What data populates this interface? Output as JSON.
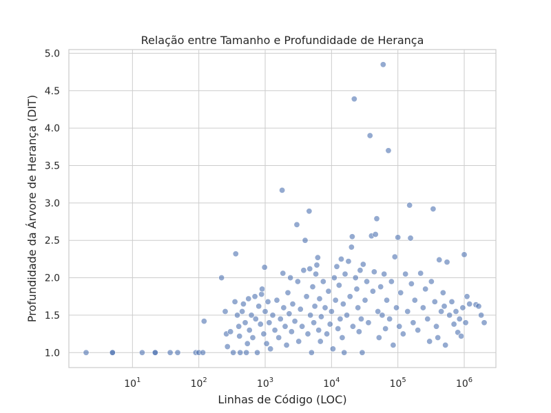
{
  "chart_data": {
    "type": "scatter",
    "title": "Relação entre Tamanho e Profundidade de Herança",
    "xlabel": "Linhas de Código (LOC)",
    "ylabel": "Profundidade da Árvore de Herança (DIT)",
    "x_scale": "log",
    "xlim": [
      1.1,
      3000000
    ],
    "ylim": [
      0.8,
      5.05
    ],
    "x_ticks": [
      10,
      100,
      1000,
      10000,
      100000,
      1000000
    ],
    "x_tick_labels": [
      {
        "base": "10",
        "exp": "1"
      },
      {
        "base": "10",
        "exp": "2"
      },
      {
        "base": "10",
        "exp": "3"
      },
      {
        "base": "10",
        "exp": "4"
      },
      {
        "base": "10",
        "exp": "5"
      },
      {
        "base": "10",
        "exp": "6"
      }
    ],
    "y_ticks": [
      1.0,
      1.5,
      2.0,
      2.5,
      3.0,
      3.5,
      4.0,
      4.5,
      5.0
    ],
    "y_tick_labels": [
      "1.0",
      "1.5",
      "2.0",
      "2.5",
      "3.0",
      "3.5",
      "4.0",
      "4.5",
      "5.0"
    ],
    "grid": true,
    "colors": {
      "point": "#4c72b0",
      "grid": "#cccccc",
      "text": "#262626"
    },
    "points": [
      [
        2,
        1.0
      ],
      [
        5,
        1.0
      ],
      [
        5,
        1.0
      ],
      [
        14,
        1.0
      ],
      [
        22,
        1.0
      ],
      [
        22,
        1.0
      ],
      [
        37,
        1.0
      ],
      [
        48,
        1.0
      ],
      [
        90,
        1.0
      ],
      [
        100,
        1.0
      ],
      [
        115,
        1.0
      ],
      [
        120,
        1.42
      ],
      [
        220,
        2.0
      ],
      [
        250,
        1.55
      ],
      [
        260,
        1.25
      ],
      [
        270,
        1.08
      ],
      [
        300,
        1.28
      ],
      [
        330,
        1.0
      ],
      [
        360,
        2.32
      ],
      [
        350,
        1.68
      ],
      [
        380,
        1.5
      ],
      [
        400,
        1.35
      ],
      [
        410,
        1.22
      ],
      [
        420,
        1.0
      ],
      [
        450,
        1.55
      ],
      [
        470,
        1.65
      ],
      [
        500,
        1.4
      ],
      [
        520,
        1.0
      ],
      [
        540,
        1.12
      ],
      [
        560,
        1.72
      ],
      [
        580,
        1.3
      ],
      [
        620,
        1.5
      ],
      [
        650,
        1.2
      ],
      [
        700,
        1.75
      ],
      [
        720,
        1.45
      ],
      [
        760,
        1.0
      ],
      [
        800,
        1.62
      ],
      [
        850,
        1.38
      ],
      [
        880,
        1.78
      ],
      [
        900,
        1.85
      ],
      [
        950,
        1.25
      ],
      [
        980,
        2.14
      ],
      [
        1000,
        1.55
      ],
      [
        1050,
        1.12
      ],
      [
        1100,
        1.68
      ],
      [
        1150,
        1.4
      ],
      [
        1200,
        1.05
      ],
      [
        1300,
        1.5
      ],
      [
        1400,
        1.3
      ],
      [
        1500,
        1.7
      ],
      [
        1600,
        1.2
      ],
      [
        1700,
        1.45
      ],
      [
        1800,
        3.17
      ],
      [
        1850,
        2.06
      ],
      [
        1900,
        1.6
      ],
      [
        2000,
        1.35
      ],
      [
        2100,
        1.1
      ],
      [
        2200,
        1.8
      ],
      [
        2300,
        1.52
      ],
      [
        2400,
        2.0
      ],
      [
        2500,
        1.28
      ],
      [
        2600,
        1.65
      ],
      [
        2800,
        1.42
      ],
      [
        3000,
        2.71
      ],
      [
        3100,
        1.95
      ],
      [
        3200,
        1.15
      ],
      [
        3400,
        1.58
      ],
      [
        3600,
        1.35
      ],
      [
        3800,
        2.1
      ],
      [
        4000,
        2.5
      ],
      [
        4200,
        1.75
      ],
      [
        4400,
        1.25
      ],
      [
        4600,
        2.89
      ],
      [
        4700,
        2.12
      ],
      [
        4800,
        1.5
      ],
      [
        5000,
        1.0
      ],
      [
        5200,
        1.88
      ],
      [
        5400,
        1.4
      ],
      [
        5600,
        1.62
      ],
      [
        5800,
        2.05
      ],
      [
        6000,
        2.17
      ],
      [
        6200,
        2.27
      ],
      [
        6400,
        1.3
      ],
      [
        6600,
        1.72
      ],
      [
        6800,
        1.15
      ],
      [
        7000,
        1.48
      ],
      [
        7500,
        1.95
      ],
      [
        8000,
        1.6
      ],
      [
        8500,
        1.25
      ],
      [
        9000,
        1.82
      ],
      [
        9500,
        1.38
      ],
      [
        10000,
        1.55
      ],
      [
        10500,
        1.05
      ],
      [
        11000,
        2.0
      ],
      [
        11500,
        1.7
      ],
      [
        12000,
        2.15
      ],
      [
        12500,
        1.32
      ],
      [
        13000,
        1.9
      ],
      [
        13500,
        1.45
      ],
      [
        14000,
        2.25
      ],
      [
        14500,
        1.2
      ],
      [
        15000,
        1.65
      ],
      [
        15500,
        1.0
      ],
      [
        16000,
        2.05
      ],
      [
        17000,
        1.5
      ],
      [
        18000,
        2.22
      ],
      [
        19000,
        1.75
      ],
      [
        20000,
        2.41
      ],
      [
        20500,
        2.55
      ],
      [
        21000,
        1.35
      ],
      [
        22000,
        4.39
      ],
      [
        23000,
        2.0
      ],
      [
        24000,
        1.85
      ],
      [
        25000,
        1.6
      ],
      [
        26000,
        1.28
      ],
      [
        27000,
        2.1
      ],
      [
        28000,
        1.45
      ],
      [
        29000,
        1.0
      ],
      [
        30000,
        2.18
      ],
      [
        32000,
        1.7
      ],
      [
        34000,
        1.95
      ],
      [
        36000,
        1.4
      ],
      [
        38000,
        3.9
      ],
      [
        40000,
        2.56
      ],
      [
        42000,
        1.82
      ],
      [
        44000,
        2.08
      ],
      [
        46000,
        2.58
      ],
      [
        48000,
        2.79
      ],
      [
        50000,
        1.55
      ],
      [
        52000,
        1.2
      ],
      [
        55000,
        1.88
      ],
      [
        58000,
        1.5
      ],
      [
        60000,
        4.85
      ],
      [
        62000,
        2.05
      ],
      [
        65000,
        1.32
      ],
      [
        68000,
        1.7
      ],
      [
        72000,
        3.7
      ],
      [
        75000,
        1.45
      ],
      [
        80000,
        1.95
      ],
      [
        85000,
        1.1
      ],
      [
        90000,
        2.28
      ],
      [
        95000,
        1.6
      ],
      [
        100000,
        2.54
      ],
      [
        105000,
        1.35
      ],
      [
        110000,
        1.8
      ],
      [
        120000,
        1.25
      ],
      [
        130000,
        2.05
      ],
      [
        140000,
        1.55
      ],
      [
        150000,
        2.97
      ],
      [
        155000,
        2.53
      ],
      [
        160000,
        1.92
      ],
      [
        170000,
        1.4
      ],
      [
        180000,
        1.7
      ],
      [
        200000,
        1.3
      ],
      [
        220000,
        2.06
      ],
      [
        240000,
        1.6
      ],
      [
        260000,
        1.85
      ],
      [
        280000,
        1.45
      ],
      [
        300000,
        1.15
      ],
      [
        320000,
        1.95
      ],
      [
        340000,
        2.92
      ],
      [
        360000,
        1.68
      ],
      [
        380000,
        1.35
      ],
      [
        400000,
        1.2
      ],
      [
        420000,
        2.24
      ],
      [
        450000,
        1.55
      ],
      [
        480000,
        1.8
      ],
      [
        500000,
        1.62
      ],
      [
        520000,
        1.1
      ],
      [
        550000,
        2.21
      ],
      [
        600000,
        1.5
      ],
      [
        650000,
        1.68
      ],
      [
        700000,
        1.38
      ],
      [
        750000,
        1.55
      ],
      [
        800000,
        1.27
      ],
      [
        850000,
        1.45
      ],
      [
        900000,
        1.22
      ],
      [
        950000,
        1.6
      ],
      [
        1000000,
        2.31
      ],
      [
        1050000,
        1.4
      ],
      [
        1100000,
        1.75
      ],
      [
        1200000,
        1.65
      ],
      [
        1500000,
        1.64
      ],
      [
        1650000,
        1.62
      ],
      [
        1800000,
        1.5
      ],
      [
        2000000,
        1.4
      ]
    ]
  }
}
